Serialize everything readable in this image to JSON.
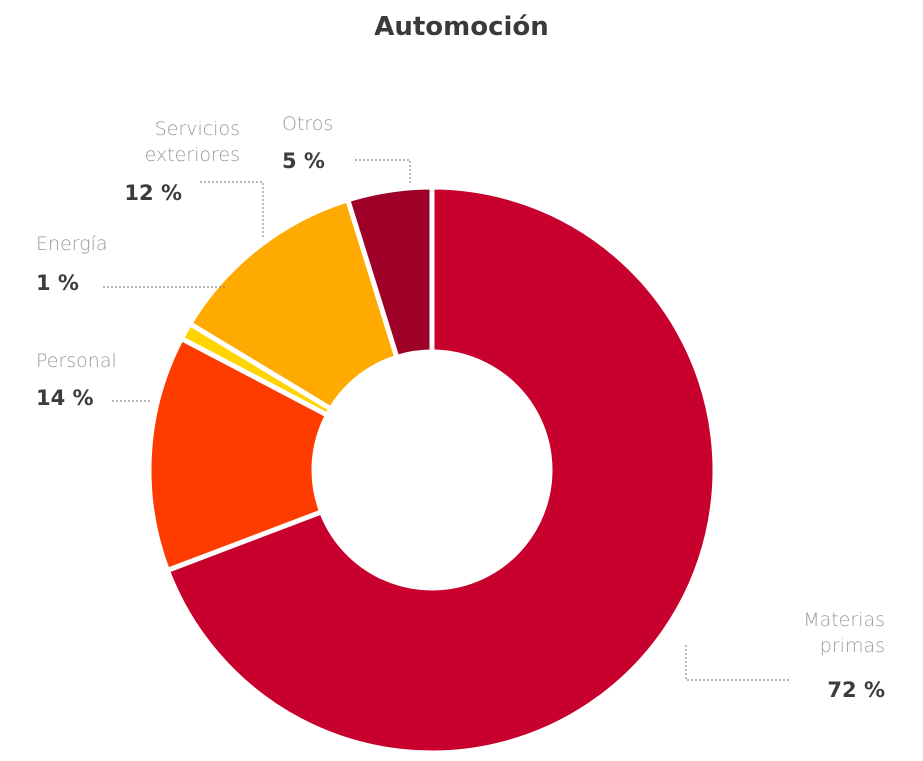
{
  "chart_data": {
    "type": "pie",
    "title": "Automoción",
    "donut": true,
    "slices": [
      {
        "key": "materias",
        "label_lines": [
          "Materias",
          "primas"
        ],
        "value": 72,
        "value_label": "72 %",
        "color": "#c8002d"
      },
      {
        "key": "personal",
        "label_lines": [
          "Personal"
        ],
        "value": 14,
        "value_label": "14 %",
        "color": "#ff3c00"
      },
      {
        "key": "energia",
        "label_lines": [
          "Energía"
        ],
        "value": 1,
        "value_label": "1 %",
        "color": "#ffd400"
      },
      {
        "key": "servicios",
        "label_lines": [
          "Servicios",
          "exteriores"
        ],
        "value": 12,
        "value_label": "12 %",
        "color": "#ffaa00"
      },
      {
        "key": "otros",
        "label_lines": [
          "Otros"
        ],
        "value": 5,
        "value_label": "5 %",
        "color": "#9e0028"
      }
    ]
  }
}
